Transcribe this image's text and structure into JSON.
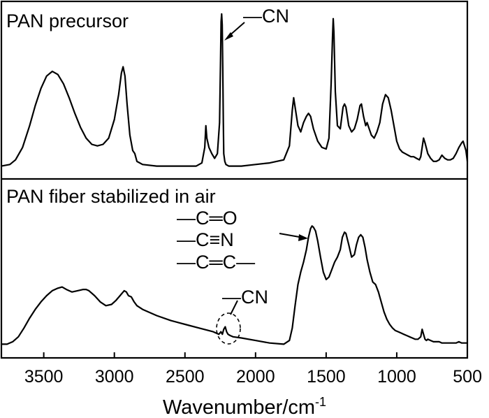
{
  "chart_data": {
    "type": "line",
    "xlabel": "Wavenumber/cm",
    "xlabel_sup": "-1",
    "xlim": [
      3800,
      500
    ],
    "x_reversed": true,
    "x_ticks": [
      3500,
      3000,
      2500,
      2000,
      1500,
      1000,
      500
    ],
    "y_axis_visible": false,
    "panels": [
      {
        "title": "PAN precursor",
        "annotations": [
          "—CN"
        ],
        "series": [
          {
            "x": [
              3800,
              3740,
              3700,
              3650,
              3600,
              3560,
              3520,
              3480,
              3440,
              3400,
              3360,
              3320,
              3280,
              3240,
              3200,
              3160,
              3120,
              3080,
              3040,
              3000,
              2970,
              2950,
              2938,
              2925,
              2910,
              2890,
              2870,
              2855,
              2840,
              2800,
              2700,
              2600,
              2500,
              2420,
              2380,
              2360,
              2352,
              2345,
              2335,
              2330,
              2310,
              2290,
              2270,
              2255,
              2248,
              2244,
              2240,
              2236,
              2232,
              2228,
              2225,
              2218,
              2210,
              2190,
              2150,
              2100,
              2000,
              1900,
              1800,
              1760,
              1740,
              1730,
              1720,
              1700,
              1680,
              1660,
              1640,
              1625,
              1610,
              1590,
              1560,
              1530,
              1500,
              1480,
              1465,
              1455,
              1450,
              1445,
              1435,
              1420,
              1400,
              1390,
              1380,
              1370,
              1360,
              1340,
              1320,
              1300,
              1280,
              1260,
              1250,
              1235,
              1220,
              1210,
              1195,
              1180,
              1160,
              1140,
              1120,
              1100,
              1080,
              1060,
              1040,
              1020,
              1000,
              980,
              960,
              940,
              920,
              900,
              880,
              860,
              840,
              830,
              820,
              810,
              800,
              780,
              760,
              740,
              720,
              700,
              680,
              660,
              640,
              620,
              600,
              580,
              560,
              540,
              530,
              520,
              510,
              500
            ],
            "y": [
              0.02,
              0.03,
              0.06,
              0.14,
              0.28,
              0.41,
              0.52,
              0.6,
              0.63,
              0.61,
              0.55,
              0.46,
              0.36,
              0.27,
              0.2,
              0.16,
              0.15,
              0.16,
              0.2,
              0.32,
              0.48,
              0.62,
              0.66,
              0.6,
              0.42,
              0.22,
              0.12,
              0.1,
              0.05,
              0.03,
              0.02,
              0.02,
              0.02,
              0.02,
              0.04,
              0.14,
              0.28,
              0.2,
              0.16,
              0.14,
              0.1,
              0.07,
              0.1,
              0.3,
              0.7,
              0.95,
              1.0,
              0.93,
              0.65,
              0.3,
              0.1,
              0.05,
              0.03,
              0.02,
              0.02,
              0.02,
              0.03,
              0.04,
              0.06,
              0.15,
              0.38,
              0.46,
              0.4,
              0.28,
              0.24,
              0.3,
              0.34,
              0.36,
              0.34,
              0.26,
              0.18,
              0.14,
              0.13,
              0.2,
              0.55,
              0.85,
              0.97,
              0.88,
              0.5,
              0.28,
              0.26,
              0.33,
              0.4,
              0.42,
              0.4,
              0.28,
              0.24,
              0.26,
              0.32,
              0.41,
              0.42,
              0.34,
              0.28,
              0.3,
              0.26,
              0.22,
              0.2,
              0.24,
              0.3,
              0.42,
              0.48,
              0.46,
              0.38,
              0.28,
              0.18,
              0.13,
              0.11,
              0.1,
              0.09,
              0.08,
              0.08,
              0.07,
              0.06,
              0.08,
              0.14,
              0.2,
              0.17,
              0.1,
              0.07,
              0.05,
              0.05,
              0.06,
              0.09,
              0.07,
              0.06,
              0.06,
              0.07,
              0.1,
              0.14,
              0.17,
              0.18,
              0.15,
              0.12,
              0.05
            ]
          }
        ]
      },
      {
        "title": "PAN fiber stabilized in air",
        "annotations": [
          "—C═O",
          "—C≡N",
          "—C═C—",
          "—CN"
        ],
        "series": [
          {
            "x": [
              3800,
              3760,
              3720,
              3680,
              3640,
              3600,
              3560,
              3520,
              3480,
              3440,
              3400,
              3370,
              3340,
              3300,
              3260,
              3220,
              3200,
              3180,
              3140,
              3100,
              3060,
              3020,
              2990,
              2960,
              2930,
              2915,
              2900,
              2880,
              2860,
              2840,
              2800,
              2700,
              2600,
              2500,
              2400,
              2300,
              2260,
              2245,
              2235,
              2225,
              2215,
              2205,
              2195,
              2180,
              2160,
              2100,
              2000,
              1900,
              1800,
              1760,
              1740,
              1720,
              1700,
              1680,
              1660,
              1640,
              1625,
              1610,
              1600,
              1590,
              1575,
              1560,
              1540,
              1520,
              1500,
              1480,
              1460,
              1440,
              1420,
              1400,
              1385,
              1370,
              1360,
              1340,
              1320,
              1300,
              1285,
              1270,
              1255,
              1240,
              1225,
              1210,
              1190,
              1170,
              1150,
              1130,
              1110,
              1090,
              1070,
              1050,
              1030,
              1010,
              990,
              970,
              950,
              930,
              910,
              890,
              870,
              850,
              830,
              820,
              810,
              800,
              790,
              780,
              760,
              740,
              720,
              700,
              680,
              660,
              640,
              620,
              600,
              580,
              560,
              540,
              520,
              500
            ],
            "y": [
              0.02,
              0.02,
              0.04,
              0.08,
              0.15,
              0.23,
              0.3,
              0.36,
              0.41,
              0.45,
              0.47,
              0.48,
              0.46,
              0.44,
              0.45,
              0.46,
              0.46,
              0.45,
              0.41,
              0.36,
              0.33,
              0.34,
              0.37,
              0.41,
              0.45,
              0.44,
              0.41,
              0.4,
              0.36,
              0.33,
              0.3,
              0.25,
              0.21,
              0.18,
              0.15,
              0.12,
              0.1,
              0.12,
              0.1,
              0.14,
              0.16,
              0.12,
              0.1,
              0.09,
              0.08,
              0.07,
              0.05,
              0.03,
              0.02,
              0.05,
              0.15,
              0.33,
              0.5,
              0.6,
              0.68,
              0.78,
              0.88,
              0.95,
              0.97,
              0.96,
              0.93,
              0.85,
              0.72,
              0.6,
              0.54,
              0.56,
              0.62,
              0.68,
              0.72,
              0.78,
              0.88,
              0.92,
              0.91,
              0.82,
              0.72,
              0.74,
              0.82,
              0.88,
              0.9,
              0.88,
              0.8,
              0.7,
              0.6,
              0.52,
              0.5,
              0.44,
              0.36,
              0.28,
              0.22,
              0.18,
              0.15,
              0.13,
              0.12,
              0.11,
              0.1,
              0.09,
              0.08,
              0.07,
              0.06,
              0.06,
              0.08,
              0.14,
              0.1,
              0.06,
              0.05,
              0.06,
              0.05,
              0.04,
              0.04,
              0.04,
              0.03,
              0.03,
              0.03,
              0.03,
              0.03,
              0.03,
              0.04,
              0.03,
              0.03,
              0.03
            ]
          }
        ]
      }
    ]
  }
}
